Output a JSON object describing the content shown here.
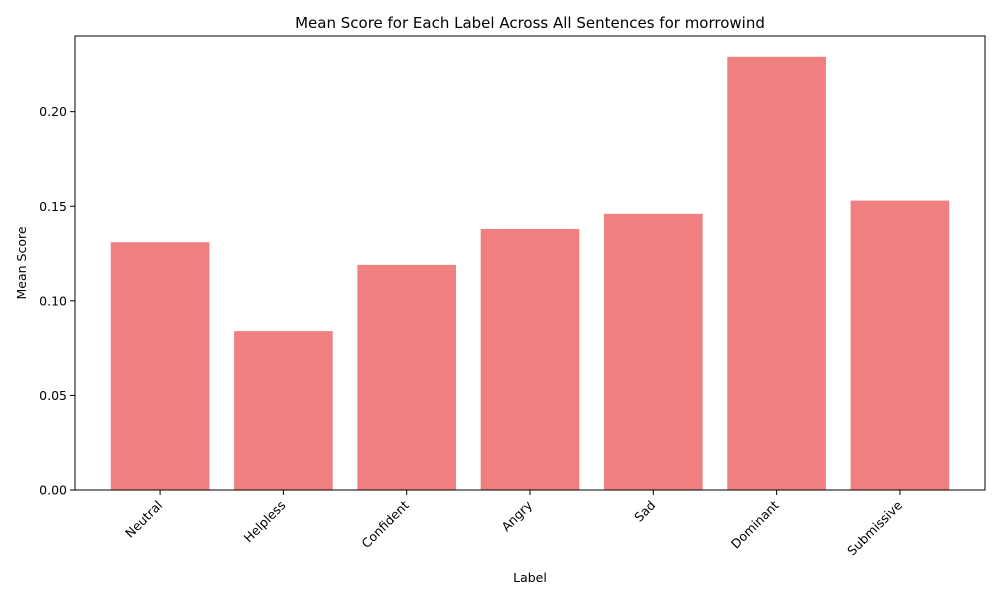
{
  "chart_data": {
    "type": "bar",
    "title": "Mean Score for Each Label Across All Sentences for morrowind",
    "xlabel": "Label",
    "ylabel": "Mean Score",
    "categories": [
      "Neutral",
      "Helpless",
      "Confident",
      "Angry",
      "Sad",
      "Dominant",
      "Submissive"
    ],
    "values": [
      0.131,
      0.084,
      0.119,
      0.138,
      0.146,
      0.229,
      0.153
    ],
    "ylim": [
      0,
      0.24
    ],
    "yticks": [
      0.0,
      0.05,
      0.1,
      0.15,
      0.2
    ],
    "ytick_labels": [
      "0.00",
      "0.05",
      "0.10",
      "0.15",
      "0.20"
    ],
    "bar_color": "#f08080",
    "grid": false,
    "legend": "none"
  }
}
